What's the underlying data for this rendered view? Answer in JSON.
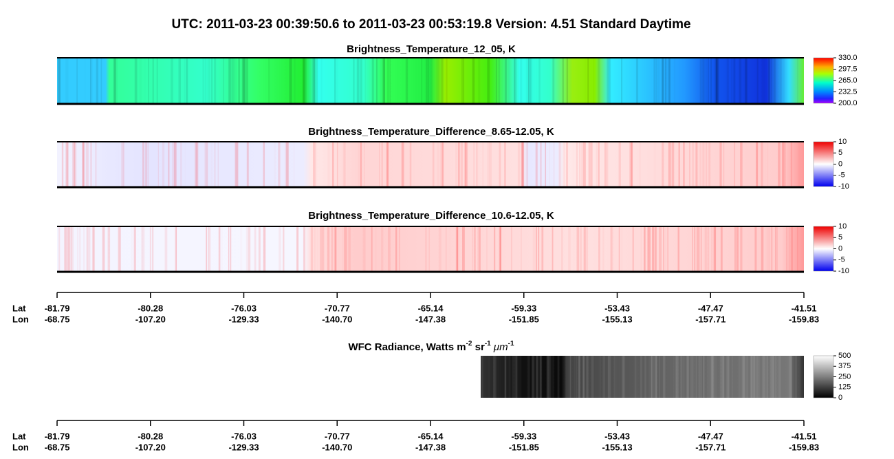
{
  "header": {
    "title": "UTC:  2011-03-23   00:39:50.6  to  2011-03-23   00:53:19.8    Version: 4.51  Standard Daytime"
  },
  "panels": [
    {
      "title": "Brightness_Temperature_12_05, K",
      "colorbar_ticks": [
        "330.0",
        "297.5",
        "265.0",
        "232.5",
        "200.0"
      ]
    },
    {
      "title": "Brightness_Temperature_Difference_8.65-12.05, K",
      "colorbar_ticks": [
        "10",
        "5",
        "0",
        "-5",
        "-10"
      ]
    },
    {
      "title": "Brightness_Temperature_Difference_10.6-12.05, K",
      "colorbar_ticks": [
        "10",
        "5",
        "0",
        "-5",
        "-10"
      ]
    },
    {
      "title": [
        "WFC Radiance, Watts m",
        "-2",
        " sr",
        "-1",
        " ",
        "μm",
        "-1"
      ],
      "colorbar_ticks": [
        "500",
        "375",
        "250",
        "125",
        "0"
      ]
    }
  ],
  "axes": [
    {
      "lat_label": "Lat",
      "lon_label": "Lon",
      "lat": [
        "-81.79",
        "-80.28",
        "-76.03",
        "-70.77",
        "-65.14",
        "-59.33",
        "-53.43",
        "-47.47",
        "-41.51"
      ],
      "lon": [
        "-68.75",
        "-107.20",
        "-129.33",
        "-140.70",
        "-147.38",
        "-151.85",
        "-155.13",
        "-157.71",
        "-159.83"
      ]
    },
    {
      "lat_label": "Lat",
      "lon_label": "Lon",
      "lat": [
        "-81.79",
        "-80.28",
        "-76.03",
        "-70.77",
        "-65.14",
        "-59.33",
        "-53.43",
        "-47.47",
        "-41.51"
      ],
      "lon": [
        "-68.75",
        "-107.20",
        "-129.33",
        "-140.70",
        "-147.38",
        "-151.85",
        "-155.13",
        "-157.71",
        "-159.83"
      ]
    }
  ]
}
